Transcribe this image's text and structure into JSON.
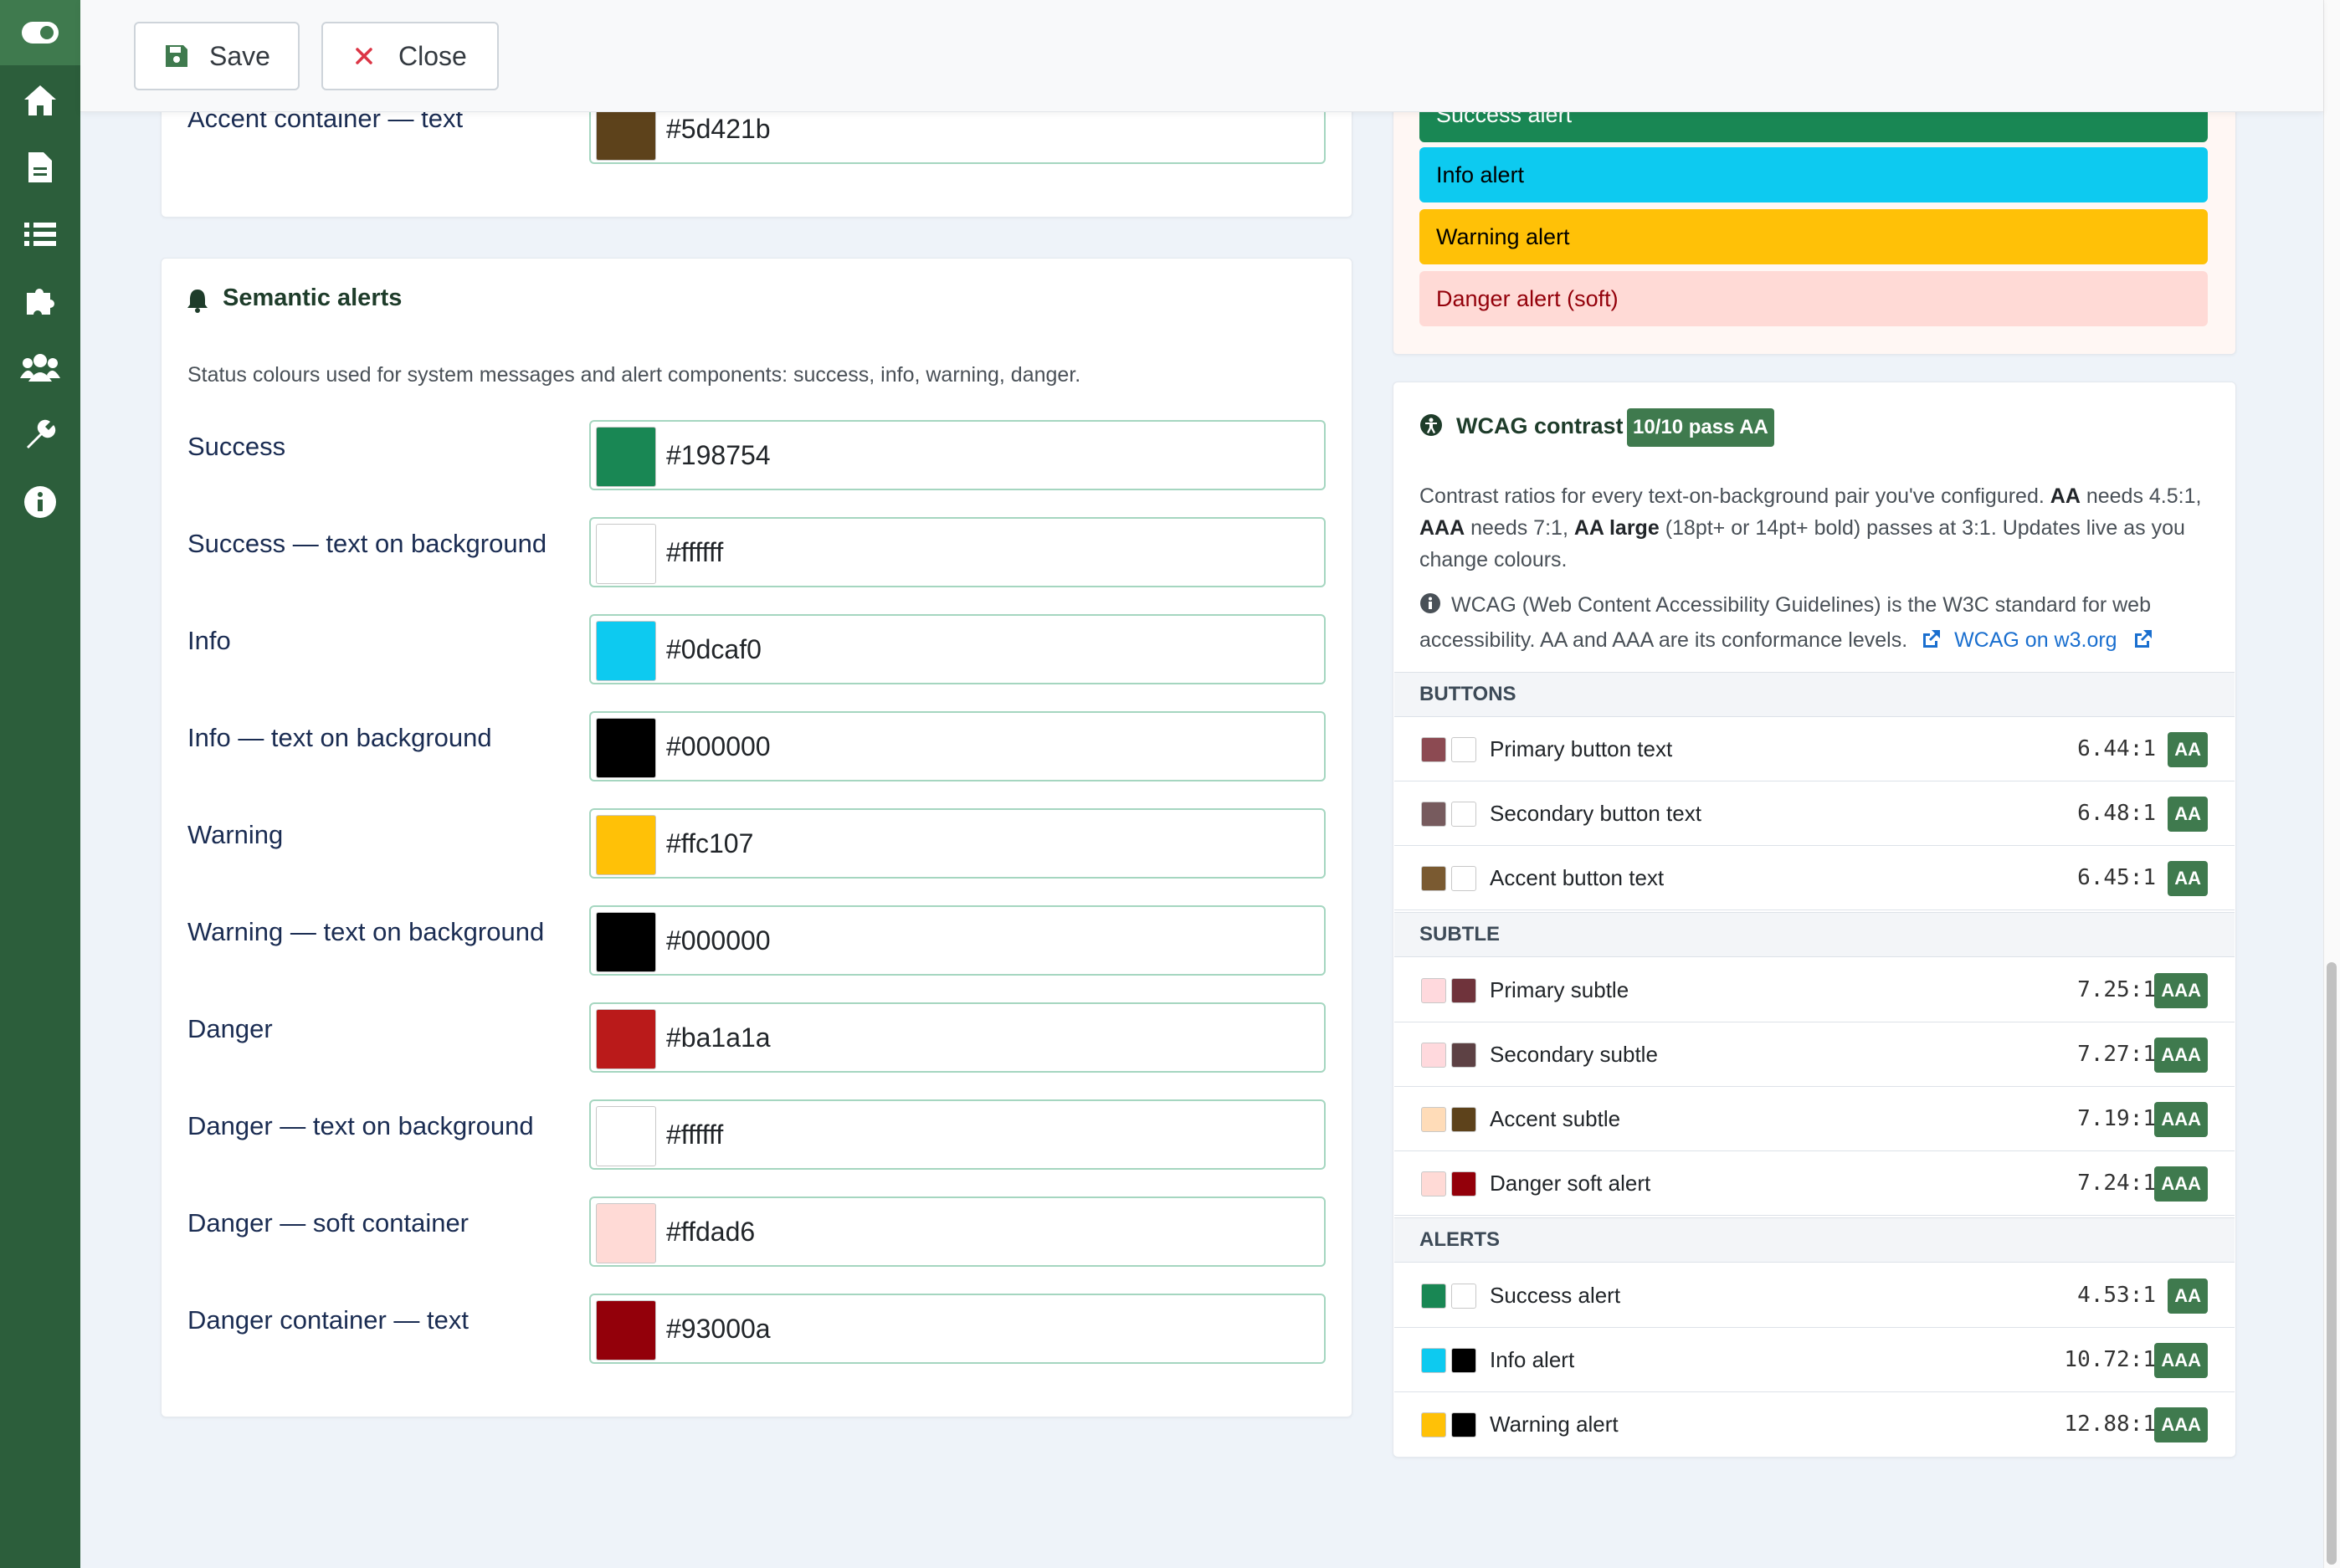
{
  "toolbar": {
    "save_label": "Save",
    "close_label": "Close"
  },
  "top_field": {
    "label": "Accent container — text",
    "hex": "#5d421b"
  },
  "semantic": {
    "title": "Semantic alerts",
    "description": "Status colours used for system messages and alert components: success, info, warning, danger.",
    "fields": [
      {
        "label": "Success",
        "hex": "#198754"
      },
      {
        "label": "Success — text on background",
        "hex": "#ffffff"
      },
      {
        "label": "Info",
        "hex": "#0dcaf0"
      },
      {
        "label": "Info — text on background",
        "hex": "#000000"
      },
      {
        "label": "Warning",
        "hex": "#ffc107"
      },
      {
        "label": "Warning — text on background",
        "hex": "#000000"
      },
      {
        "label": "Danger",
        "hex": "#ba1a1a"
      },
      {
        "label": "Danger — text on background",
        "hex": "#ffffff"
      },
      {
        "label": "Danger — soft container",
        "hex": "#ffdad6"
      },
      {
        "label": "Danger container — text",
        "hex": "#93000a"
      }
    ]
  },
  "preview_alerts": [
    {
      "label": "Success alert",
      "bg": "#198754",
      "fg": "#ffffff"
    },
    {
      "label": "Info alert",
      "bg": "#0dcaf0",
      "fg": "#000000"
    },
    {
      "label": "Warning alert",
      "bg": "#ffc107",
      "fg": "#000000"
    },
    {
      "label": "Danger alert (soft)",
      "bg": "#ffdad6",
      "fg": "#93000a"
    }
  ],
  "wcag": {
    "title": "WCAG contrast",
    "badge": "10/10 pass AA",
    "desc_1": "Contrast ratios for every text-on-background pair you've configured.",
    "desc_aa": "AA",
    "desc_2": "needs 4.5:1,",
    "desc_aaa": "AAA",
    "desc_3": "needs 7:1,",
    "desc_aal": "AA large",
    "desc_4": "(18pt+ or 14pt+ bold) passes at 3:1. Updates live as you change colours.",
    "info_text": "WCAG (Web Content Accessibility Guidelines) is the W3C standard for web accessibility. AA and AAA are its conformance levels.",
    "link_label": "WCAG on w3.org",
    "sections": [
      {
        "title": "BUTTONS",
        "rows": [
          {
            "label": "Primary button text",
            "ratio": "6.44:1",
            "level": "AA",
            "bg": "#8c4a52",
            "fg": "#ffffff"
          },
          {
            "label": "Secondary button text",
            "ratio": "6.48:1",
            "level": "AA",
            "bg": "#775b5e",
            "fg": "#ffffff"
          },
          {
            "label": "Accent button text",
            "ratio": "6.45:1",
            "level": "AA",
            "bg": "#7a5a31",
            "fg": "#ffffff"
          }
        ]
      },
      {
        "title": "SUBTLE",
        "rows": [
          {
            "label": "Primary subtle",
            "ratio": "7.25:1",
            "level": "AAA",
            "bg": "#ffd9dd",
            "fg": "#6f333b"
          },
          {
            "label": "Secondary subtle",
            "ratio": "7.27:1",
            "level": "AAA",
            "bg": "#ffd9dd",
            "fg": "#5d4144"
          },
          {
            "label": "Accent subtle",
            "ratio": "7.19:1",
            "level": "AAA",
            "bg": "#ffdcb8",
            "fg": "#5d421b"
          },
          {
            "label": "Danger soft alert",
            "ratio": "7.24:1",
            "level": "AAA",
            "bg": "#ffdad6",
            "fg": "#93000a"
          }
        ]
      },
      {
        "title": "ALERTS",
        "rows": [
          {
            "label": "Success alert",
            "ratio": "4.53:1",
            "level": "AA",
            "bg": "#198754",
            "fg": "#ffffff"
          },
          {
            "label": "Info alert",
            "ratio": "10.72:1",
            "level": "AAA",
            "bg": "#0dcaf0",
            "fg": "#000000"
          },
          {
            "label": "Warning alert",
            "ratio": "12.88:1",
            "level": "AAA",
            "bg": "#ffc107",
            "fg": "#000000"
          }
        ]
      }
    ]
  },
  "sidebar": {
    "items": [
      "toggle-icon",
      "home-icon",
      "document-icon",
      "list-icon",
      "puzzle-icon",
      "users-icon",
      "wrench-icon",
      "info-icon"
    ]
  },
  "colors": {
    "sidebar": "#2c5e3b",
    "accent": "#3f7a4e",
    "field_border": "#a5d6c0",
    "label_text": "#1a2c52"
  }
}
